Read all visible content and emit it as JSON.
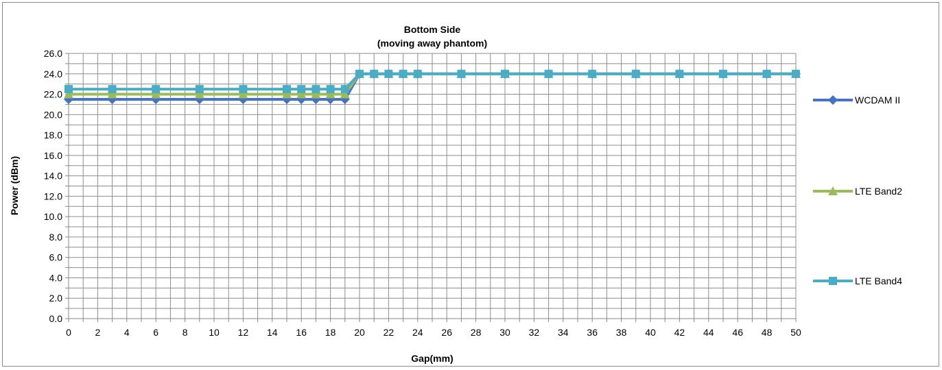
{
  "chart_data": {
    "type": "line",
    "title": "Bottom Side",
    "subtitle": "(moving away phantom)",
    "xlabel": "Gap(mm)",
    "ylabel": "Power (dBm)",
    "xlim": [
      0,
      50
    ],
    "ylim": [
      0,
      26
    ],
    "x_ticks": [
      0,
      2,
      4,
      6,
      8,
      10,
      12,
      14,
      16,
      18,
      20,
      22,
      24,
      26,
      28,
      30,
      32,
      34,
      36,
      38,
      40,
      42,
      44,
      46,
      48,
      50
    ],
    "x_tick_labels": [
      "0",
      "2",
      "4",
      "6",
      "8",
      "10",
      "12",
      "14",
      "16",
      "18",
      "20",
      "22",
      "24",
      "26",
      "28",
      "30",
      "32",
      "34",
      "36",
      "38",
      "40",
      "42",
      "44",
      "46",
      "48",
      "50"
    ],
    "y_ticks": [
      0,
      2,
      4,
      6,
      8,
      10,
      12,
      14,
      16,
      18,
      20,
      22,
      24,
      26
    ],
    "y_tick_labels": [
      "0.0",
      "2.0",
      "4.0",
      "6.0",
      "8.0",
      "10.0",
      "12.0",
      "14.0",
      "16.0",
      "18.0",
      "20.0",
      "22.0",
      "24.0",
      "26.0"
    ],
    "grid": true,
    "legend_position": "right",
    "x": [
      0,
      3,
      6,
      9,
      12,
      15,
      16,
      17,
      18,
      19,
      20,
      21,
      22,
      23,
      24,
      27,
      30,
      33,
      36,
      39,
      42,
      45,
      48,
      50
    ],
    "series": [
      {
        "name": "WCDAM II",
        "color": "#4472c4",
        "marker": "diamond",
        "values": [
          21.5,
          21.5,
          21.5,
          21.5,
          21.5,
          21.5,
          21.5,
          21.5,
          21.5,
          21.5,
          24,
          24,
          24,
          24,
          24,
          24,
          24,
          24,
          24,
          24,
          24,
          24,
          24,
          24
        ]
      },
      {
        "name": "LTE Band2",
        "color": "#9bbb59",
        "marker": "triangle",
        "values": [
          22,
          22,
          22,
          22,
          22,
          22,
          22,
          22,
          22,
          22,
          24,
          24,
          24,
          24,
          24,
          24,
          24,
          24,
          24,
          24,
          24,
          24,
          24,
          24
        ]
      },
      {
        "name": "LTE Band4",
        "color": "#4bacc6",
        "marker": "square",
        "values": [
          22.5,
          22.5,
          22.5,
          22.5,
          22.5,
          22.5,
          22.5,
          22.5,
          22.5,
          22.5,
          24,
          24,
          24,
          24,
          24,
          24,
          24,
          24,
          24,
          24,
          24,
          24,
          24,
          24
        ]
      }
    ]
  }
}
